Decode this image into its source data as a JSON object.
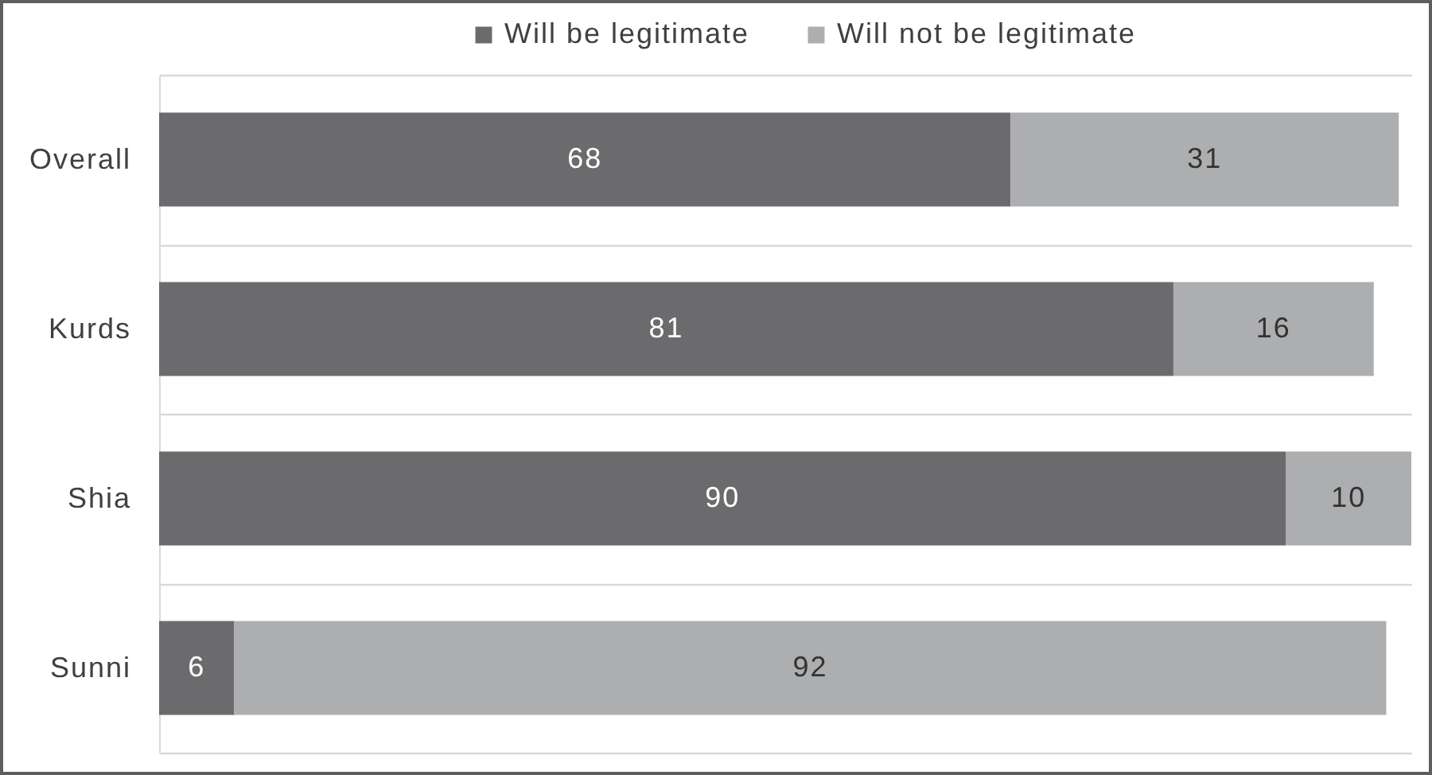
{
  "chart_data": {
    "type": "bar",
    "orientation": "horizontal",
    "stacked": true,
    "categories": [
      "Overall",
      "Kurds",
      "Shia",
      "Sunni"
    ],
    "series": [
      {
        "name": "Will be legitimate",
        "color": "#6b6b6d",
        "values": [
          68,
          81,
          90,
          6
        ]
      },
      {
        "name": "Will not be legitimate",
        "color": "#adaeb0",
        "values": [
          31,
          16,
          10,
          92
        ]
      }
    ],
    "data_labels": true,
    "legend": "top",
    "grid": "y",
    "tick_labels": "y"
  }
}
